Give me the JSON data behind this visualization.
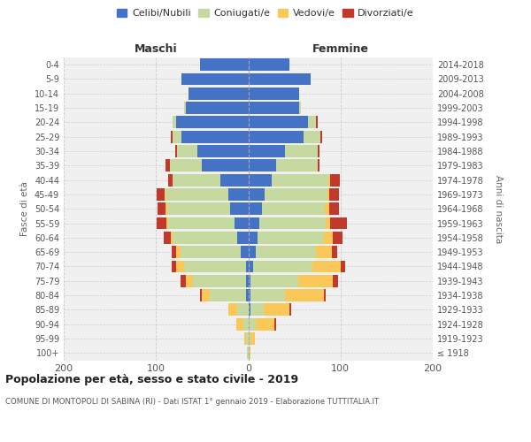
{
  "age_groups": [
    "100+",
    "95-99",
    "90-94",
    "85-89",
    "80-84",
    "75-79",
    "70-74",
    "65-69",
    "60-64",
    "55-59",
    "50-54",
    "45-49",
    "40-44",
    "35-39",
    "30-34",
    "25-29",
    "20-24",
    "15-19",
    "10-14",
    "5-9",
    "0-4"
  ],
  "birth_years": [
    "≤ 1918",
    "1919-1923",
    "1924-1928",
    "1929-1933",
    "1934-1938",
    "1939-1943",
    "1944-1948",
    "1949-1953",
    "1954-1958",
    "1959-1963",
    "1964-1968",
    "1969-1973",
    "1974-1978",
    "1979-1983",
    "1984-1988",
    "1989-1993",
    "1994-1998",
    "1999-2003",
    "2004-2008",
    "2009-2013",
    "2014-2018"
  ],
  "maschi": {
    "celibi": [
      0,
      0,
      0,
      0,
      2,
      2,
      2,
      8,
      12,
      15,
      20,
      22,
      30,
      50,
      55,
      72,
      78,
      68,
      65,
      72,
      52
    ],
    "coniugati": [
      1,
      2,
      5,
      12,
      40,
      58,
      68,
      65,
      70,
      72,
      68,
      68,
      52,
      35,
      22,
      10,
      4,
      2,
      0,
      0,
      0
    ],
    "vedovi": [
      0,
      2,
      8,
      10,
      8,
      8,
      8,
      5,
      2,
      2,
      2,
      1,
      0,
      0,
      0,
      0,
      0,
      0,
      0,
      0,
      0
    ],
    "divorziati": [
      0,
      0,
      0,
      0,
      2,
      5,
      5,
      5,
      8,
      10,
      8,
      8,
      5,
      5,
      2,
      2,
      0,
      0,
      0,
      0,
      0
    ]
  },
  "femmine": {
    "nubili": [
      0,
      0,
      0,
      2,
      2,
      2,
      5,
      8,
      10,
      12,
      15,
      18,
      25,
      30,
      40,
      60,
      65,
      55,
      55,
      68,
      45
    ],
    "coniugate": [
      1,
      2,
      8,
      15,
      38,
      52,
      65,
      65,
      72,
      72,
      68,
      68,
      62,
      45,
      35,
      18,
      8,
      2,
      0,
      0,
      0
    ],
    "vedove": [
      1,
      5,
      20,
      28,
      42,
      38,
      30,
      18,
      10,
      5,
      5,
      2,
      2,
      0,
      0,
      0,
      0,
      0,
      0,
      0,
      0
    ],
    "divorziate": [
      0,
      0,
      2,
      2,
      2,
      5,
      5,
      5,
      10,
      18,
      10,
      10,
      10,
      2,
      2,
      2,
      2,
      0,
      0,
      0,
      0
    ]
  },
  "colors": {
    "celibi": "#4472C4",
    "coniugati": "#C5D9A0",
    "vedovi": "#FAC858",
    "divorziati": "#C0392B"
  },
  "legend_labels": [
    "Celibi/Nubili",
    "Coniugati/e",
    "Vedovi/e",
    "Divorziati/e"
  ],
  "title": "Popolazione per età, sesso e stato civile - 2019",
  "subtitle": "COMUNE DI MONTOPOLI DI SABINA (RI) - Dati ISTAT 1° gennaio 2019 - Elaborazione TUTTITALIA.IT",
  "xlabel_left": "Maschi",
  "xlabel_right": "Femmine",
  "ylabel_left": "Fasce di età",
  "ylabel_right": "Anni di nascita",
  "xlim": 200,
  "background_color": "#ffffff",
  "plot_bg_color": "#f0f0f0"
}
